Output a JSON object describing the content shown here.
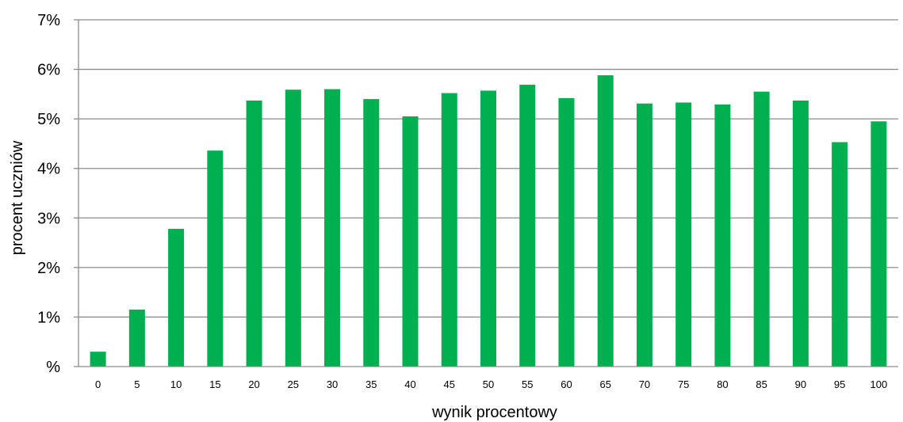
{
  "chart_data": {
    "type": "bar",
    "xlabel": "wynik procentowy",
    "ylabel": "procent uczniów",
    "categories": [
      "0",
      "5",
      "10",
      "15",
      "20",
      "25",
      "30",
      "35",
      "40",
      "45",
      "50",
      "55",
      "60",
      "65",
      "70",
      "75",
      "80",
      "85",
      "90",
      "95",
      "100"
    ],
    "series": [
      {
        "values": [
          0.3,
          1.15,
          2.78,
          4.36,
          5.37,
          5.59,
          5.6,
          5.4,
          5.05,
          5.52,
          5.57,
          5.69,
          5.42,
          5.88,
          5.31,
          5.33,
          5.29,
          5.55,
          5.37,
          4.53,
          4.95
        ],
        "color": "#00b050"
      }
    ],
    "ylim": [
      0,
      7
    ],
    "yticks": [
      {
        "value": 0,
        "label": "%"
      },
      {
        "value": 1,
        "label": "1%"
      },
      {
        "value": 2,
        "label": "2%"
      },
      {
        "value": 3,
        "label": "3%"
      },
      {
        "value": 4,
        "label": "4%"
      },
      {
        "value": 5,
        "label": "5%"
      },
      {
        "value": 6,
        "label": "6%"
      },
      {
        "value": 7,
        "label": "7%"
      }
    ],
    "grid": true,
    "grid_color": "#8c8c8c",
    "axis_color": "#8c8c8c"
  }
}
